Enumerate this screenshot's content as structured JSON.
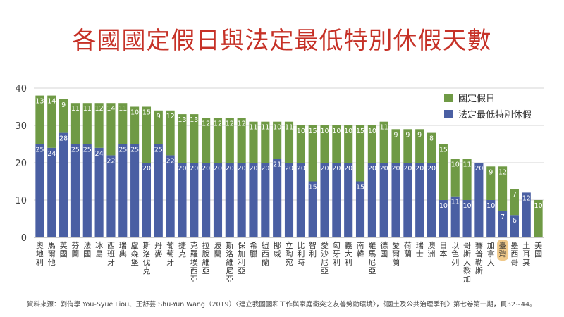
{
  "title": "各國國定假日與法定最低特別休假天數",
  "source": "資料來源：劉侑學 You-Syue Liou、王舒芸 Shu-Yun Wang（2019）〈建立我國國和工作與家庭衝突之友善勞動環境〉，《國土及公共治理季刊》第七卷第一期，頁32~44。",
  "colors": {
    "holiday": "#6f9a45",
    "leave": "#4a5fa3",
    "highlight": "#f0c98a",
    "title": "#c63127"
  },
  "chart_data": {
    "type": "bar",
    "stacked": true,
    "title": "各國國定假日與法定最低特別休假天數",
    "ylim": [
      0,
      40
    ],
    "yticks": [
      0,
      10,
      20,
      30,
      40
    ],
    "grid": true,
    "legend_position": "top-right",
    "categories": [
      "奧地利",
      "馬爾他",
      "英國",
      "芬蘭",
      "法國",
      "冰島",
      "西班牙",
      "瑞典",
      "盧森堡",
      "斯洛伐克",
      "丹麥",
      "葡萄牙",
      "捷克",
      "克羅埃西亞",
      "拉脫維亞",
      "波蘭",
      "斯洛維尼亞",
      "保加利亞",
      "希臘",
      "紐西蘭",
      "挪威",
      "立陶宛",
      "比利時",
      "智利",
      "愛沙尼亞",
      "匈牙利",
      "義大利",
      "南韓",
      "羅馬尼亞",
      "德國",
      "愛爾蘭",
      "荷蘭",
      "瑞士",
      "澳洲",
      "日本",
      "以色列",
      "哥斯大黎加",
      "賽普勒斯",
      "加拿大",
      "臺灣",
      "墨西哥",
      "土耳其",
      "美國"
    ],
    "highlight_category": "臺灣",
    "series": [
      {
        "name": "法定最低特別休假",
        "values": [
          25,
          24,
          28,
          25,
          25,
          24,
          22,
          25,
          25,
          20,
          25,
          22,
          20,
          20,
          20,
          20,
          20,
          20,
          20,
          20,
          21,
          20,
          20,
          15,
          20,
          20,
          20,
          15,
          20,
          20,
          20,
          20,
          20,
          20,
          10,
          11,
          10,
          20,
          10,
          7,
          6,
          12,
          0
        ]
      },
      {
        "name": "國定假日",
        "values": [
          13,
          14,
          9,
          11,
          11,
          12,
          14,
          11,
          10,
          15,
          9,
          12,
          13,
          13,
          12,
          12,
          12,
          12,
          11,
          11,
          10,
          11,
          10,
          15,
          10,
          10,
          10,
          15,
          10,
          11,
          9,
          9,
          9,
          8,
          15,
          10,
          11,
          0,
          9,
          12,
          7,
          0,
          10
        ]
      }
    ]
  }
}
